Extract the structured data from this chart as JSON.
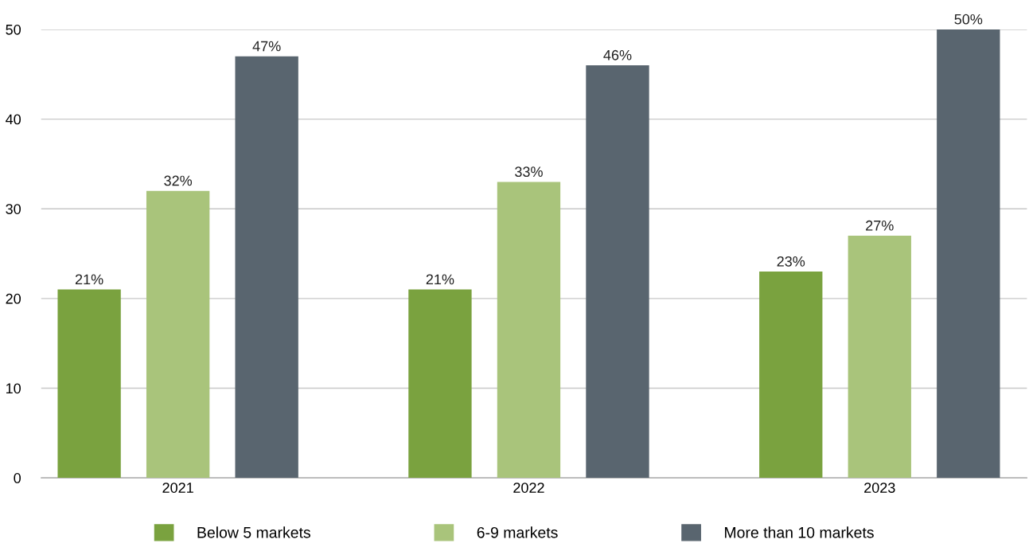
{
  "chart_data": {
    "type": "bar",
    "categories": [
      "2021",
      "2022",
      "2023"
    ],
    "series": [
      {
        "name": "Below 5 markets",
        "color": "#7aa23f",
        "values": [
          21,
          21,
          23
        ],
        "value_labels": [
          "21%",
          "21%",
          "23%"
        ]
      },
      {
        "name": "6-9 markets",
        "color": "#a9c47b",
        "values": [
          32,
          33,
          27
        ],
        "value_labels": [
          "32%",
          "33%",
          "27%"
        ]
      },
      {
        "name": "More than 10 markets",
        "color": "#59656f",
        "values": [
          47,
          46,
          50
        ],
        "value_labels": [
          "47%",
          "46%",
          "50%"
        ]
      }
    ],
    "ylim": [
      0,
      50
    ],
    "yticks": [
      0,
      10,
      20,
      30,
      40,
      50
    ],
    "grid": "y",
    "legend": "bottom"
  }
}
